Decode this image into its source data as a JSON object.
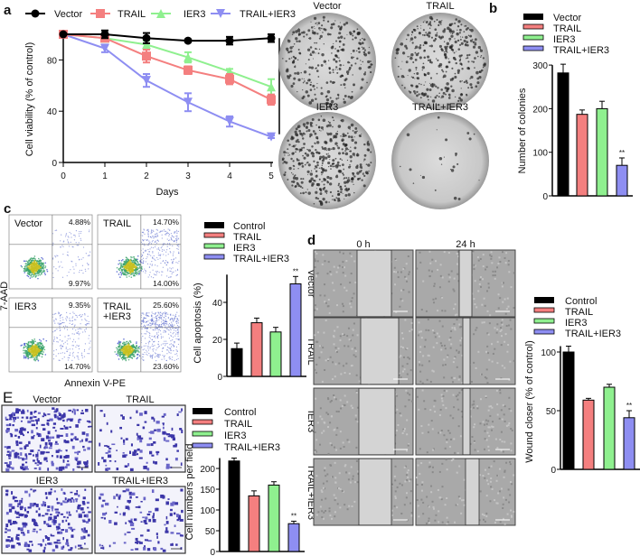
{
  "colors": {
    "Vector": "#000000",
    "TRAIL": "#f47f7f",
    "IER3": "#8ff08f",
    "TRAIL+IER3": "#8e8ef2"
  },
  "panels": {
    "a": "a",
    "b": "b",
    "c": "c",
    "d": "d",
    "e": "E"
  },
  "colony_images": {
    "labels": [
      "Vector",
      "TRAIL",
      "IER3",
      "TRAIL+IER3"
    ]
  },
  "flow_images": {
    "ylabel": "7-AAD",
    "xlabel": "Annexin V-PE",
    "panels": [
      {
        "label": "Vector",
        "upper_right": "4.88%",
        "lower_right": "9.97%"
      },
      {
        "label": "TRAIL",
        "upper_right": "14.70%",
        "lower_right": "14.00%"
      },
      {
        "label": "IER3",
        "upper_right": "9.35%",
        "lower_right": "14.70%"
      },
      {
        "label": "TRAIL\n+IER3",
        "upper_right": "25.60%",
        "lower_right": "23.60%"
      }
    ]
  },
  "wound_images": {
    "columns": [
      "0 h",
      "24 h"
    ],
    "rows": [
      "Vector",
      "TRAIL",
      "IER3",
      "TRAIL+IER3"
    ]
  },
  "transwell_images": {
    "labels": [
      "Vector",
      "TRAIL",
      "IER3",
      "TRAIL+IER3"
    ]
  },
  "chart_data": [
    {
      "type": "line",
      "title": "",
      "xlabel": "Days",
      "ylabel": "Cell viability (% of control)",
      "x": [
        0,
        1,
        2,
        3,
        4,
        5
      ],
      "xticks": [
        "0",
        "1",
        "2",
        "3",
        "4",
        "5"
      ],
      "yticks": [
        "0",
        "40",
        "80"
      ],
      "ylim": [
        0,
        100
      ],
      "series": [
        {
          "name": "Vector",
          "marker": "circle",
          "values": [
            100,
            100,
            97,
            95,
            95,
            97
          ],
          "errors": [
            0,
            3,
            4,
            1,
            3,
            3
          ]
        },
        {
          "name": "TRAIL",
          "marker": "square",
          "values": [
            100,
            97,
            83,
            72,
            65,
            49
          ],
          "errors": [
            0,
            2,
            5,
            3,
            4,
            4
          ]
        },
        {
          "name": "IER3",
          "marker": "triangle-up",
          "values": [
            100,
            97,
            92,
            82,
            71,
            59
          ],
          "errors": [
            0,
            2,
            3,
            4,
            2,
            6
          ]
        },
        {
          "name": "TRAIL+IER3",
          "marker": "triangle-down",
          "values": [
            100,
            89,
            64,
            47,
            32,
            20
          ],
          "errors": [
            0,
            3,
            5,
            7,
            4,
            1
          ]
        }
      ],
      "annotations": [
        "*",
        "*"
      ]
    },
    {
      "type": "bar",
      "ylabel": "Number of colonies",
      "categories": [
        "Vector",
        "TRAIL",
        "IER3",
        "TRAIL+IER3"
      ],
      "values": [
        282,
        187,
        200,
        70
      ],
      "errors": [
        20,
        10,
        17,
        17
      ],
      "yticks": [
        "0",
        "100",
        "200",
        "300"
      ],
      "ylim": [
        0,
        300
      ],
      "significance": [
        "",
        "",
        "",
        "**"
      ]
    },
    {
      "type": "bar",
      "ylabel": "Cell apoptosis (%)",
      "categories": [
        "Control",
        "TRAIL",
        "IER3",
        "TRAIL+IER3"
      ],
      "values": [
        15,
        29,
        24,
        50
      ],
      "errors": [
        3,
        2.5,
        2.5,
        4
      ],
      "yticks": [
        "0",
        "20",
        "40"
      ],
      "ylim": [
        0,
        55
      ],
      "significance": [
        "",
        "",
        "",
        "**"
      ]
    },
    {
      "type": "bar",
      "ylabel": "Wound closer (% of control)",
      "categories": [
        "Control",
        "TRAIL",
        "IER3",
        "TRAIL+IER3"
      ],
      "values": [
        100,
        59,
        70,
        44
      ],
      "errors": [
        5,
        1.5,
        2.5,
        6
      ],
      "yticks": [
        "0",
        "50",
        "100"
      ],
      "ylim": [
        0,
        105
      ],
      "significance": [
        "",
        "",
        "",
        "**"
      ]
    },
    {
      "type": "bar",
      "ylabel": "Cell numbers per field",
      "categories": [
        "Control",
        "TRAIL",
        "IER3",
        "TRAIL+IER3"
      ],
      "values": [
        218,
        134,
        160,
        67
      ],
      "errors": [
        7,
        12,
        8,
        6
      ],
      "yticks": [
        "0",
        "50",
        "100",
        "150",
        "200"
      ],
      "ylim": [
        0,
        225
      ],
      "significance": [
        "",
        "",
        "",
        "**"
      ]
    }
  ]
}
